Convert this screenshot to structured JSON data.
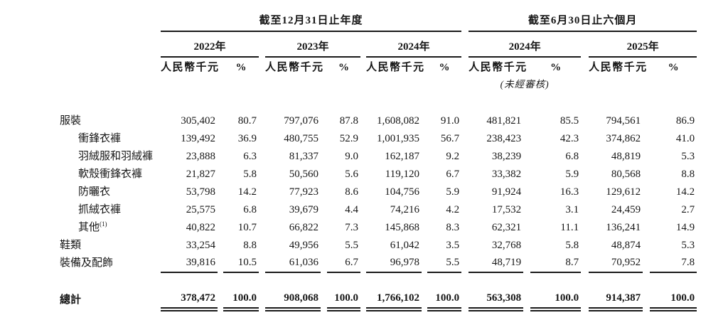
{
  "table": {
    "period_groups": [
      {
        "title": "截至12月31日止年度",
        "years": [
          "2022年",
          "2023年",
          "2024年"
        ]
      },
      {
        "title": "截至6月30日止六個月",
        "years": [
          "2024年",
          "2025年"
        ]
      }
    ],
    "column_headers": {
      "amount": "人民幣千元",
      "percent": "%"
    },
    "unaudited_note": "(未經審核)",
    "rows": [
      {
        "label": "服裝",
        "footnote": "",
        "indent": false,
        "cells": [
          [
            "305,402",
            "80.7"
          ],
          [
            "797,076",
            "87.8"
          ],
          [
            "1,608,082",
            "91.0"
          ],
          [
            "481,821",
            "85.5"
          ],
          [
            "794,561",
            "86.9"
          ]
        ]
      },
      {
        "label": "衝鋒衣褲",
        "footnote": "",
        "indent": true,
        "cells": [
          [
            "139,492",
            "36.9"
          ],
          [
            "480,755",
            "52.9"
          ],
          [
            "1,001,935",
            "56.7"
          ],
          [
            "238,423",
            "42.3"
          ],
          [
            "374,862",
            "41.0"
          ]
        ]
      },
      {
        "label": "羽絨服和羽絨褲",
        "footnote": "",
        "indent": true,
        "cells": [
          [
            "23,888",
            "6.3"
          ],
          [
            "81,337",
            "9.0"
          ],
          [
            "162,187",
            "9.2"
          ],
          [
            "38,239",
            "6.8"
          ],
          [
            "48,819",
            "5.3"
          ]
        ]
      },
      {
        "label": "軟殼衝鋒衣褲",
        "footnote": "",
        "indent": true,
        "cells": [
          [
            "21,827",
            "5.8"
          ],
          [
            "50,560",
            "5.6"
          ],
          [
            "119,120",
            "6.7"
          ],
          [
            "33,382",
            "5.9"
          ],
          [
            "80,568",
            "8.8"
          ]
        ]
      },
      {
        "label": "防曬衣",
        "footnote": "",
        "indent": true,
        "cells": [
          [
            "53,798",
            "14.2"
          ],
          [
            "77,923",
            "8.6"
          ],
          [
            "104,756",
            "5.9"
          ],
          [
            "91,924",
            "16.3"
          ],
          [
            "129,612",
            "14.2"
          ]
        ]
      },
      {
        "label": "抓絨衣褲",
        "footnote": "",
        "indent": true,
        "cells": [
          [
            "25,575",
            "6.8"
          ],
          [
            "39,679",
            "4.4"
          ],
          [
            "74,216",
            "4.2"
          ],
          [
            "17,532",
            "3.1"
          ],
          [
            "24,459",
            "2.7"
          ]
        ]
      },
      {
        "label": "其他",
        "footnote": "(1)",
        "indent": true,
        "cells": [
          [
            "40,822",
            "10.7"
          ],
          [
            "66,822",
            "7.3"
          ],
          [
            "145,868",
            "8.3"
          ],
          [
            "62,321",
            "11.1"
          ],
          [
            "136,241",
            "14.9"
          ]
        ]
      },
      {
        "label": "鞋類",
        "footnote": "",
        "indent": false,
        "cells": [
          [
            "33,254",
            "8.8"
          ],
          [
            "49,956",
            "5.5"
          ],
          [
            "61,042",
            "3.5"
          ],
          [
            "32,768",
            "5.8"
          ],
          [
            "48,874",
            "5.3"
          ]
        ]
      },
      {
        "label": "裝備及配飾",
        "footnote": "",
        "indent": false,
        "cells": [
          [
            "39,816",
            "10.5"
          ],
          [
            "61,036",
            "6.7"
          ],
          [
            "96,978",
            "5.5"
          ],
          [
            "48,719",
            "8.7"
          ],
          [
            "70,952",
            "7.8"
          ]
        ]
      }
    ],
    "total_row": {
      "label": "總計",
      "cells": [
        [
          "378,472",
          "100.0"
        ],
        [
          "908,068",
          "100.0"
        ],
        [
          "1,766,102",
          "100.0"
        ],
        [
          "563,308",
          "100.0"
        ],
        [
          "914,387",
          "100.0"
        ]
      ]
    }
  }
}
